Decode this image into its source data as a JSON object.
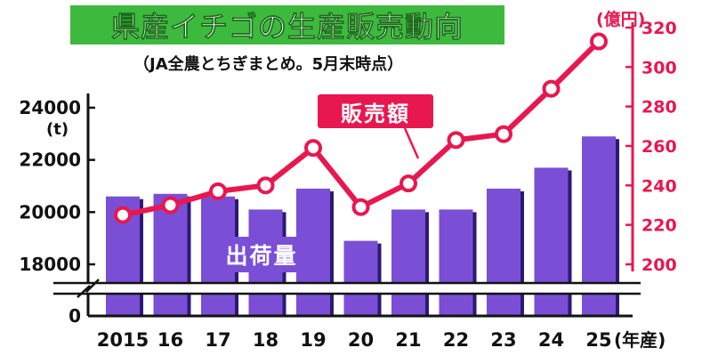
{
  "title": "県産イチゴの生産販売動向",
  "subtitle": "（JA全農とちぎまとめ。5月末時点）",
  "colors": {
    "title_bg": "#3dba3d",
    "bar": "#7a4fd6",
    "bar_shadow": "#2b1a73",
    "line": "#e8174f",
    "axis_left": "#111111"
  },
  "chart_data": {
    "type": "bar+line",
    "categories": [
      "2015",
      "16",
      "17",
      "18",
      "19",
      "20",
      "21",
      "22",
      "23",
      "24",
      "25"
    ],
    "x_unit": "(年産)",
    "series": [
      {
        "name": "出荷量",
        "type": "bar",
        "axis": "left",
        "unit": "(t)",
        "values": [
          20600,
          20700,
          20600,
          20100,
          20900,
          18900,
          20100,
          20100,
          20900,
          21700,
          22900
        ]
      },
      {
        "name": "販売額",
        "type": "line",
        "axis": "right",
        "unit": "(億円)",
        "values": [
          225,
          230,
          237,
          240,
          259,
          229,
          241,
          263,
          266,
          289,
          313
        ]
      }
    ],
    "left_axis": {
      "ticks": [
        "24000",
        "22000",
        "20000",
        "18000",
        "0"
      ],
      "tick_values": [
        24000,
        22000,
        20000,
        18000,
        0
      ],
      "range": [
        17000,
        24700
      ],
      "broken": true
    },
    "right_axis": {
      "ticks": [
        "320",
        "300",
        "280",
        "260",
        "240",
        "220",
        "200"
      ],
      "tick_values": [
        320,
        300,
        280,
        260,
        240,
        220,
        200
      ],
      "range": [
        200,
        320
      ]
    }
  }
}
